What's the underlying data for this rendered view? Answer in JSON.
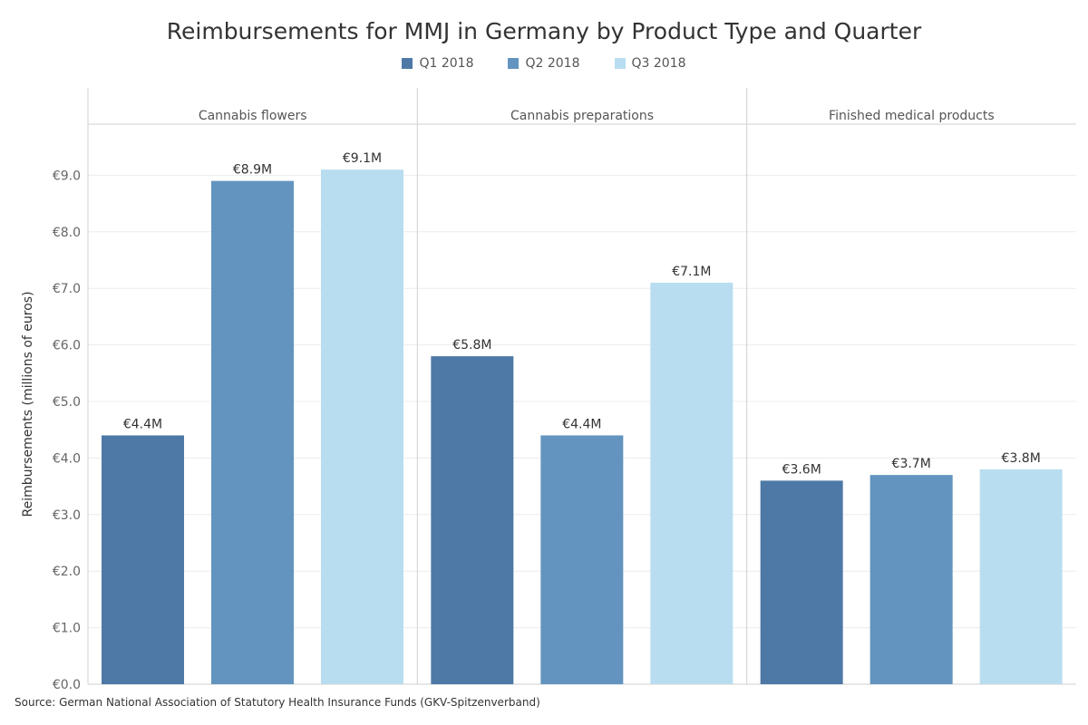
{
  "chart_data": {
    "type": "bar",
    "title": "Reimbursements for MMJ in Germany by Product Type and Quarter",
    "ylabel": "Reimbursements (millions of euros)",
    "xlabel": "",
    "ylim": [
      0,
      9.8
    ],
    "yticks": [
      "€0.0",
      "€1.0",
      "€2.0",
      "€3.0",
      "€4.0",
      "€5.0",
      "€6.0",
      "€7.0",
      "€8.0",
      "€9.0"
    ],
    "grid": true,
    "legend_position": "top-center",
    "categories": [
      "Cannabis flowers",
      "Cannabis preparations",
      "Finished medical products"
    ],
    "series": [
      {
        "name": "Q1 2018",
        "color": "#4e79a7",
        "values": [
          4.4,
          5.8,
          3.6
        ],
        "labels": [
          "€4.4M",
          "€5.8M",
          "€3.6M"
        ]
      },
      {
        "name": "Q2 2018",
        "color": "#6394bf",
        "values": [
          8.9,
          4.4,
          3.7
        ],
        "labels": [
          "€8.9M",
          "€4.4M",
          "€3.7M"
        ]
      },
      {
        "name": "Q3 2018",
        "color": "#b9ddf0",
        "values": [
          9.1,
          7.1,
          3.8
        ],
        "labels": [
          "€9.1M",
          "€7.1M",
          "€3.8M"
        ]
      }
    ],
    "source": "Source: German National Association of Statutory Health Insurance Funds (GKV-Spitzenverband)"
  }
}
